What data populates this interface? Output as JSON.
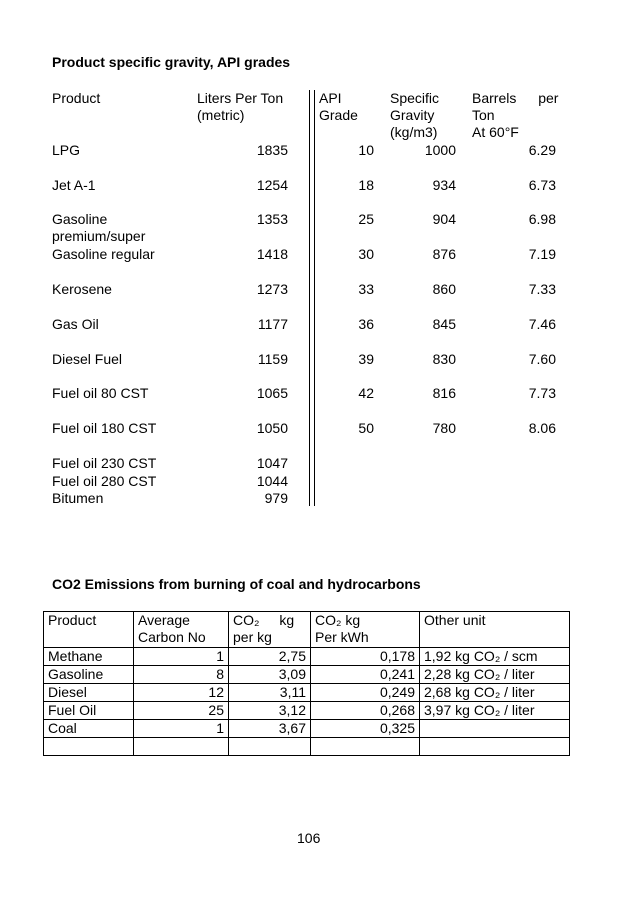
{
  "section1": {
    "title": "Product specific gravity, API grades",
    "headers": [
      [
        "Product"
      ],
      [
        "Liters Per Ton",
        "(metric)"
      ],
      [
        "API",
        "Grade"
      ],
      [
        "Specific",
        "Gravity",
        "(kg/m3)"
      ],
      [
        "Barrels per",
        "Ton",
        "At 60°F"
      ]
    ],
    "products": [
      [
        "LPG",
        "1835"
      ],
      [
        "Jet A-1",
        "1254"
      ],
      [
        "Gasoline premium/super",
        "1353"
      ],
      [
        "Gasoline regular",
        "1418"
      ],
      [
        "Kerosene",
        "1273"
      ],
      [
        "Gas Oil",
        "1177"
      ],
      [
        "Diesel Fuel",
        "1159"
      ],
      [
        "Fuel oil 80 CST",
        "1065"
      ],
      [
        "Fuel oil 180 CST",
        "1050"
      ],
      [
        "Fuel oil 230 CST",
        "1047"
      ],
      [
        "Fuel oil 280 CST",
        "1044"
      ],
      [
        "Bitumen",
        "979"
      ]
    ],
    "grades": [
      [
        "10",
        "1000",
        "6.29"
      ],
      [
        "18",
        "934",
        "6.73"
      ],
      [
        "25",
        "904",
        "6.98"
      ],
      [
        "30",
        "876",
        "7.19"
      ],
      [
        "33",
        "860",
        "7.33"
      ],
      [
        "36",
        "845",
        "7.46"
      ],
      [
        "39",
        "830",
        "7.60"
      ],
      [
        "42",
        "816",
        "7.73"
      ],
      [
        "50",
        "780",
        "8.06"
      ]
    ]
  },
  "section2": {
    "title": "CO2 Emissions from burning of coal and hydrocarbons",
    "headers": [
      [
        "Product"
      ],
      [
        "Average",
        "Carbon No"
      ],
      [
        "CO₂ kg",
        "per kg"
      ],
      [
        "CO₂ kg",
        "Per kWh"
      ],
      [
        "Other unit"
      ]
    ],
    "rows": [
      [
        "Methane",
        "1",
        "2,75",
        "0,178",
        "1,92 kg CO₂ / scm"
      ],
      [
        "Gasoline",
        "8",
        "3,09",
        "0,241",
        "2,28 kg CO₂ / liter"
      ],
      [
        "Diesel",
        "12",
        "3,11",
        "0,249",
        "2,68 kg CO₂ / liter"
      ],
      [
        "Fuel Oil",
        "25",
        "3,12",
        "0,268",
        "3,97 kg CO₂ / liter"
      ],
      [
        "Coal",
        "1",
        "3,67",
        "0,325"
      ]
    ]
  },
  "page_number": "106"
}
